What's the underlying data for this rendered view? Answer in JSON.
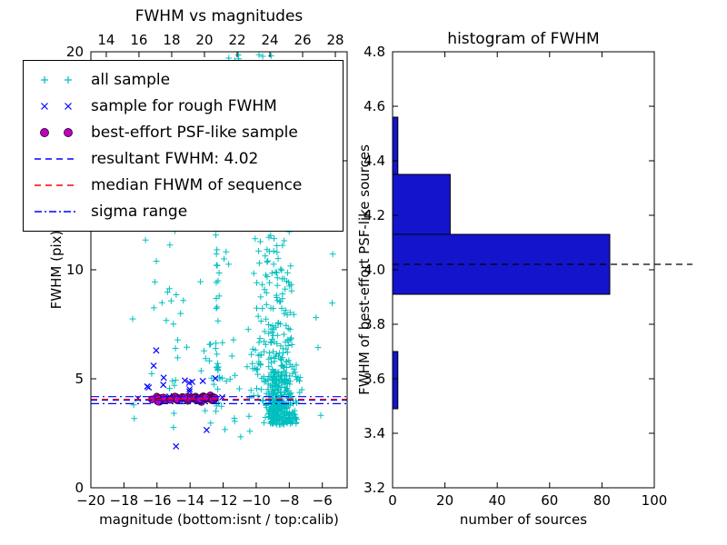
{
  "figure": {
    "background": "#ffffff",
    "frame_color": "#000000"
  },
  "chart_data": [
    {
      "type": "scatter",
      "title": "FWHM vs magnitudes",
      "xlabel": "magnitude (bottom:isnt / top:calib)",
      "ylabel": "FWHM (pix)",
      "x_range": [
        -20,
        -4.5
      ],
      "y_range": [
        0,
        20
      ],
      "x_ticks": {
        "values": [
          -20,
          -18,
          -16,
          -14,
          -12,
          -10,
          -8,
          -6
        ],
        "labels": [
          "−20",
          "−18",
          "−16",
          "−14",
          "−12",
          "−10",
          "−8",
          "−6"
        ]
      },
      "y_ticks": {
        "values": [
          0,
          5,
          10,
          15,
          20
        ],
        "labels": [
          "0",
          "5",
          "10",
          "15",
          "20"
        ]
      },
      "top_axis": {
        "range": [
          13.06,
          28.72
        ],
        "values": [
          14,
          16,
          18,
          20,
          22,
          24,
          26,
          28
        ],
        "labels": [
          "14",
          "16",
          "18",
          "20",
          "22",
          "24",
          "26",
          "28"
        ]
      },
      "colors": {
        "all_sample": "#00bfbf",
        "rough": "#0000ff",
        "psf": "#bf00bf",
        "psf_edge": "#38003a",
        "resultant": "#0000ff",
        "median": "#ff0000",
        "sigma": "#0000ff"
      },
      "legend": [
        {
          "label": "all sample",
          "marker": "plus",
          "color": "#00bfbf"
        },
        {
          "label": "sample for rough FWHM",
          "marker": "x",
          "color": "#0000ff"
        },
        {
          "label": "best-effort PSF-like sample",
          "marker": "circle",
          "color": "#bf00bf"
        },
        {
          "label": "resultant FWHM: 4.02",
          "marker": "dashed",
          "color": "#0000ff"
        },
        {
          "label": "median FHWM of sequence",
          "marker": "dashed",
          "color": "#ff0000"
        },
        {
          "label": "sigma range",
          "marker": "dashdot",
          "color": "#0000ff"
        }
      ],
      "resultant_fwhm": 4.02,
      "lines": [
        {
          "y": 4.18,
          "style": "dashdot",
          "color": "#0000ff",
          "name": "sigma-range-line-upper"
        },
        {
          "y": 3.86,
          "style": "dashdot",
          "color": "#0000ff",
          "name": "sigma-range-line-lower"
        },
        {
          "y": 4.02,
          "style": "dashed",
          "color": "#0000ff",
          "name": "resultant-fwhm-line"
        },
        {
          "y": 4.06,
          "style": "dashed",
          "color": "#ff0000",
          "name": "median-fwhm-line"
        }
      ],
      "generator": {
        "seed": 7,
        "clusters": [
          {
            "marker": "plus",
            "n": 400,
            "x": {
              "dist": "normal",
              "mu": -8.6,
              "sd": 0.5
            },
            "y": {
              "dist": "exp",
              "base": 2.9,
              "scale": 1.5,
              "max": 19.9
            }
          },
          {
            "marker": "plus",
            "n": 150,
            "x": {
              "dist": "normal",
              "mu": -9.0,
              "sd": 0.65
            },
            "y": {
              "dist": "uniform",
              "min": 5.0,
              "max": 19.9
            },
            "drift": -0.05
          },
          {
            "marker": "plus",
            "n": 60,
            "x": {
              "dist": "uniform",
              "min": -17.6,
              "max": -5.2
            },
            "y": {
              "dist": "uniform",
              "min": 2.2,
              "max": 19.5
            }
          },
          {
            "marker": "plus",
            "n": 26,
            "x": {
              "dist": "normal",
              "mu": -12.35,
              "sd": 0.12
            },
            "y": {
              "dist": "uniform",
              "min": 4.2,
              "max": 13.2
            }
          },
          {
            "marker": "plus",
            "n": 22,
            "x": {
              "dist": "normal",
              "mu": -15.1,
              "sd": 0.45
            },
            "y": {
              "dist": "uniform",
              "min": 3.4,
              "max": 12.5
            }
          },
          {
            "marker": "plus",
            "n": 30,
            "x": {
              "dist": "uniform",
              "min": -13.6,
              "max": -9.8
            },
            "y": {
              "dist": "uniform",
              "min": 3.0,
              "max": 6.8
            }
          },
          {
            "marker": "plus",
            "n": 14,
            "x": {
              "dist": "normal",
              "mu": -10.9,
              "sd": 0.55
            },
            "y": {
              "dist": "uniform",
              "min": 18.2,
              "max": 19.9
            }
          },
          {
            "marker": "x",
            "n": 15,
            "x": {
              "dist": "uniform",
              "min": -16.6,
              "max": -12.4
            },
            "y": {
              "dist": "normal",
              "mu": 4.35,
              "sd": 0.35
            }
          },
          {
            "marker": "circle",
            "n": 58,
            "x": {
              "dist": "uniform",
              "min": -16.1,
              "max": -12.35
            },
            "y": {
              "dist": "normal",
              "mu": 4.08,
              "sd": 0.055
            }
          }
        ],
        "extra_points": {
          "x_marker": [
            [
              -17.15,
              4.1
            ],
            [
              -16.2,
              5.6
            ],
            [
              -16.05,
              6.3
            ],
            [
              -14.85,
              1.9
            ],
            [
              -13.0,
              2.65
            ],
            [
              -12.05,
              4.15
            ],
            [
              -15.6,
              5.05
            ],
            [
              -16.5,
              4.6
            ]
          ],
          "circle_marker": [
            [
              -16.3,
              4.05
            ],
            [
              -12.5,
              4.12
            ]
          ]
        }
      }
    },
    {
      "type": "bar",
      "orientation": "horizontal",
      "title": "histogram of FWHM",
      "xlabel": "number of sources",
      "ylabel": "FWHM of best-effort PSF-like sources",
      "x_range": [
        0,
        100
      ],
      "y_range": [
        3.2,
        4.8
      ],
      "x_ticks": {
        "values": [
          0,
          20,
          40,
          60,
          80,
          100
        ],
        "labels": [
          "0",
          "20",
          "40",
          "60",
          "80",
          "100"
        ]
      },
      "y_ticks": {
        "values": [
          3.2,
          3.4,
          3.6,
          3.8,
          4.0,
          4.2,
          4.4,
          4.6,
          4.8
        ],
        "labels": [
          "3.2",
          "3.4",
          "3.6",
          "3.8",
          "4.0",
          "4.2",
          "4.4",
          "4.6",
          "4.8"
        ]
      },
      "bin_edges": [
        3.49,
        3.7,
        3.91,
        4.13,
        4.35,
        4.56
      ],
      "counts": [
        2,
        0,
        83,
        22,
        2
      ],
      "bar_color": "#1414cc",
      "bar_edge": "#000000",
      "dashed_line_y": 4.02,
      "dashed_line_color": "#000000"
    }
  ]
}
